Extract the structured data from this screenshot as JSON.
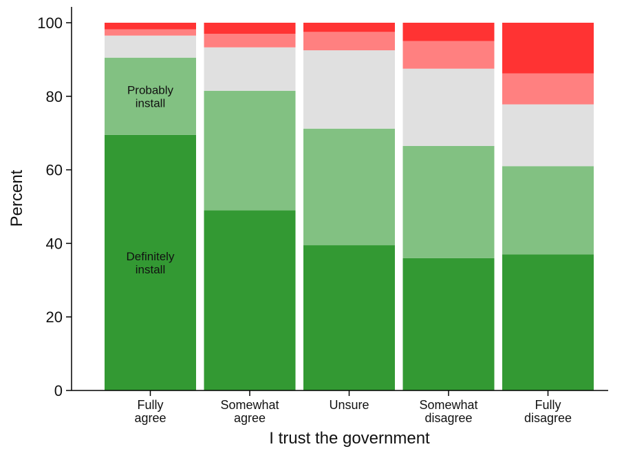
{
  "chart_data": {
    "type": "bar",
    "stacked": true,
    "orientation": "vertical",
    "xlabel": "I trust the government",
    "ylabel": "Percent",
    "ylim": [
      0,
      100
    ],
    "yticks": [
      0,
      20,
      40,
      60,
      80,
      100
    ],
    "grid": false,
    "legend": "none",
    "categories": [
      [
        "Fully",
        "agree"
      ],
      [
        "Somewhat",
        "agree"
      ],
      [
        "Unsure"
      ],
      [
        "Somewhat",
        "disagree"
      ],
      [
        "Fully",
        "disagree"
      ]
    ],
    "series": [
      {
        "color": "#339933",
        "values": [
          69.5,
          49.0,
          39.5,
          36.0,
          37.0
        ]
      },
      {
        "color": "#82c182",
        "values": [
          21.0,
          32.5,
          31.7,
          30.5,
          24.0
        ]
      },
      {
        "color": "#e0e0e0",
        "values": [
          6.0,
          11.8,
          21.3,
          21.0,
          16.8
        ]
      },
      {
        "color": "#ff8080",
        "values": [
          1.7,
          3.7,
          5.0,
          7.5,
          8.4
        ]
      },
      {
        "color": "#ff3333",
        "values": [
          1.8,
          3.0,
          2.5,
          5.0,
          13.8
        ]
      }
    ],
    "annotations": [
      {
        "category": 0,
        "series": 0,
        "lines": [
          "Definitely",
          "install"
        ]
      },
      {
        "category": 0,
        "series": 1,
        "lines": [
          "Probably",
          "install"
        ]
      }
    ]
  }
}
